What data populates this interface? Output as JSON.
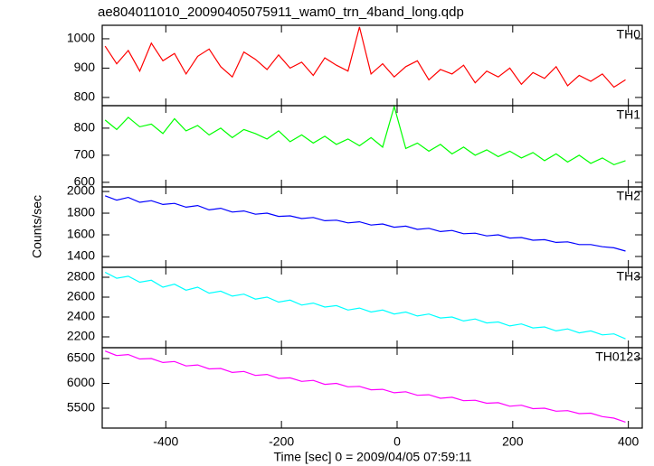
{
  "chart_data": {
    "type": "line",
    "title": "ae804011010_20090405075911_wam0_trn_4band_long.qdp",
    "xlabel": "Time [sec] 0 = 2009/04/05 07:59:11",
    "ylabel": "Counts/sec",
    "xlim": [
      -510,
      424
    ],
    "xticks": [
      -400,
      -200,
      0,
      200,
      400
    ],
    "x": [
      -505,
      -485,
      -465,
      -445,
      -425,
      -405,
      -385,
      -365,
      -345,
      -325,
      -305,
      -285,
      -265,
      -245,
      -225,
      -205,
      -185,
      -165,
      -145,
      -125,
      -105,
      -85,
      -65,
      -45,
      -25,
      -5,
      15,
      35,
      55,
      75,
      95,
      115,
      135,
      155,
      175,
      195,
      215,
      235,
      255,
      275,
      295,
      315,
      335,
      355,
      375,
      395
    ],
    "series": [
      {
        "name": "TH0",
        "color": "#ff0000",
        "ylim": [
          772,
          1046
        ],
        "yticks": [
          800,
          900,
          1000
        ],
        "values": [
          975,
          915,
          960,
          890,
          985,
          925,
          950,
          880,
          940,
          965,
          905,
          870,
          955,
          930,
          895,
          945,
          900,
          920,
          875,
          935,
          910,
          890,
          1040,
          880,
          915,
          870,
          905,
          925,
          860,
          895,
          880,
          910,
          850,
          890,
          870,
          900,
          845,
          885,
          865,
          905,
          840,
          875,
          855,
          880,
          835,
          860
        ]
      },
      {
        "name": "TH1",
        "color": "#00ff00",
        "ylim": [
          583,
          883
        ],
        "yticks": [
          600,
          700,
          800
        ],
        "values": [
          830,
          795,
          840,
          805,
          815,
          780,
          835,
          790,
          810,
          775,
          800,
          765,
          795,
          780,
          760,
          790,
          750,
          775,
          745,
          770,
          740,
          760,
          735,
          765,
          730,
          880,
          725,
          745,
          715,
          740,
          705,
          730,
          700,
          720,
          695,
          715,
          690,
          710,
          680,
          705,
          675,
          700,
          670,
          690,
          665,
          680
        ]
      },
      {
        "name": "TH2",
        "color": "#0000ff",
        "ylim": [
          1300,
          2042
        ],
        "yticks": [
          1400,
          1600,
          1800,
          2000
        ],
        "values": [
          1960,
          1920,
          1945,
          1900,
          1915,
          1880,
          1890,
          1855,
          1870,
          1830,
          1845,
          1810,
          1820,
          1790,
          1800,
          1770,
          1775,
          1750,
          1760,
          1730,
          1735,
          1710,
          1720,
          1690,
          1700,
          1670,
          1680,
          1650,
          1660,
          1630,
          1640,
          1610,
          1615,
          1590,
          1600,
          1570,
          1575,
          1550,
          1555,
          1530,
          1535,
          1510,
          1510,
          1490,
          1480,
          1450
        ]
      },
      {
        "name": "TH3",
        "color": "#00ffff",
        "ylim": [
          2091,
          2900
        ],
        "yticks": [
          2200,
          2400,
          2600,
          2800
        ],
        "values": [
          2850,
          2790,
          2810,
          2750,
          2770,
          2700,
          2730,
          2670,
          2700,
          2640,
          2660,
          2610,
          2630,
          2580,
          2600,
          2550,
          2570,
          2520,
          2540,
          2500,
          2515,
          2470,
          2490,
          2450,
          2470,
          2430,
          2450,
          2410,
          2430,
          2390,
          2400,
          2360,
          2380,
          2340,
          2350,
          2310,
          2330,
          2290,
          2300,
          2260,
          2280,
          2240,
          2260,
          2220,
          2230,
          2180
        ]
      },
      {
        "name": "TH0123",
        "color": "#ff00ff",
        "ylim": [
          5100,
          6718
        ],
        "yticks": [
          5500,
          6000,
          6500
        ],
        "values": [
          6650,
          6560,
          6580,
          6490,
          6500,
          6420,
          6440,
          6350,
          6370,
          6290,
          6300,
          6220,
          6240,
          6160,
          6180,
          6100,
          6110,
          6040,
          6060,
          5980,
          6000,
          5930,
          5940,
          5870,
          5880,
          5810,
          5830,
          5760,
          5770,
          5700,
          5720,
          5650,
          5660,
          5600,
          5610,
          5540,
          5560,
          5490,
          5500,
          5440,
          5450,
          5390,
          5400,
          5330,
          5300,
          5220
        ]
      }
    ]
  }
}
